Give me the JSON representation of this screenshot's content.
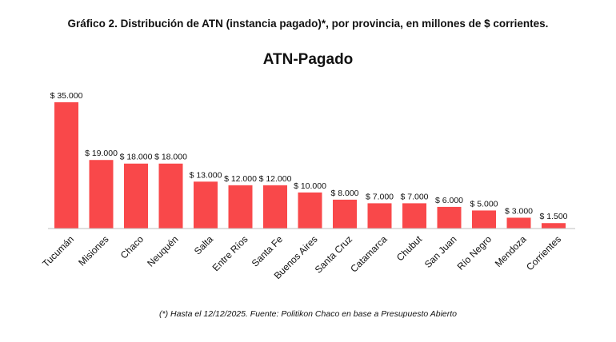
{
  "header": {
    "title": "Gráfico 2. Distribución de ATN (instancia pagado)*, por provincia, en millones de $ corrientes."
  },
  "footnote": "(*) Hasta el 12/12/2025. Fuente: Politikon Chaco en base a Presupuesto Abierto",
  "chart_data": {
    "type": "bar",
    "title": "ATN-Pagado",
    "xlabel": "",
    "ylabel": "",
    "categories": [
      "Tucumán",
      "Misiones",
      "Chaco",
      "Neuquén",
      "Salta",
      "Entre Ríos",
      "Santa Fe",
      "Buenos Aires",
      "Santa Cruz",
      "Catamarca",
      "Chubut",
      "San Juan",
      "Río Negro",
      "Mendoza",
      "Corrientes"
    ],
    "values": [
      35000,
      19000,
      18000,
      18000,
      13000,
      12000,
      12000,
      10000,
      8000,
      7000,
      7000,
      6000,
      5000,
      3000,
      1500
    ],
    "value_labels": [
      "$ 35.000",
      "$ 19.000",
      "$ 18.000",
      "$ 18.000",
      "$ 13.000",
      "$ 12.000",
      "$ 12.000",
      "$ 10.000",
      "$ 8.000",
      "$ 7.000",
      "$ 7.000",
      "$ 6.000",
      "$ 5.000",
      "$ 3.000",
      "$ 1.500"
    ],
    "ylim": [
      0,
      35000
    ],
    "grid": false,
    "legend": "none",
    "bar_color": "#f9484a",
    "axis_color": "#bfbfbf"
  }
}
